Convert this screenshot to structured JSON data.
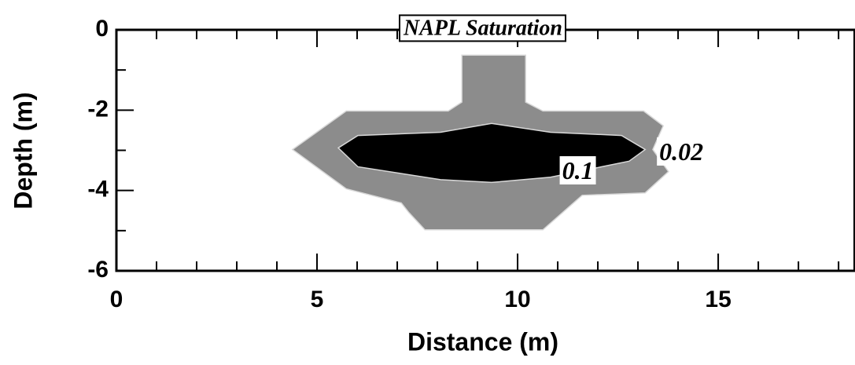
{
  "chart_data": {
    "type": "contour",
    "title": "NAPL Saturation",
    "x_label": "Distance (m)",
    "y_label": "Depth (m)",
    "xlim": [
      0,
      18.4
    ],
    "ylim": [
      -6,
      0
    ],
    "xticks": [
      0,
      5,
      10,
      15
    ],
    "yticks": [
      0,
      -2,
      -4,
      -6
    ],
    "xminorticks": [
      1,
      2,
      3,
      4,
      6,
      7,
      8,
      9,
      11,
      12,
      13,
      14,
      16,
      17,
      18
    ],
    "yminorticks": [
      -1,
      -3,
      -5
    ],
    "contours": [
      {
        "level": 0.02,
        "color": "#8c8c8c",
        "x": [
          8.61,
          10.2,
          10.2,
          10.63,
          13.14,
          13.63,
          13.37,
          13.76,
          13.18,
          11.61,
          11.12,
          10.63,
          7.69,
          7.29,
          7.1,
          5.73,
          4.39,
          5.73,
          8.27,
          8.61
        ],
        "y": [
          -0.63,
          -0.63,
          -1.8,
          -2.02,
          -2.02,
          -2.39,
          -2.98,
          -3.53,
          -4.06,
          -4.12,
          -4.55,
          -4.98,
          -4.98,
          -4.55,
          -4.31,
          -3.96,
          -2.98,
          -2.02,
          -2.02,
          -1.8
        ]
      },
      {
        "level": 0.1,
        "color": "#000000",
        "x": [
          5.53,
          6.02,
          8.08,
          9.35,
          10.82,
          12.59,
          13.18,
          12.78,
          10.82,
          9.35,
          8.08,
          6.02
        ],
        "y": [
          -2.94,
          -2.63,
          -2.55,
          -2.33,
          -2.55,
          -2.63,
          -2.98,
          -3.27,
          -3.67,
          -3.8,
          -3.73,
          -3.41
        ]
      }
    ]
  }
}
